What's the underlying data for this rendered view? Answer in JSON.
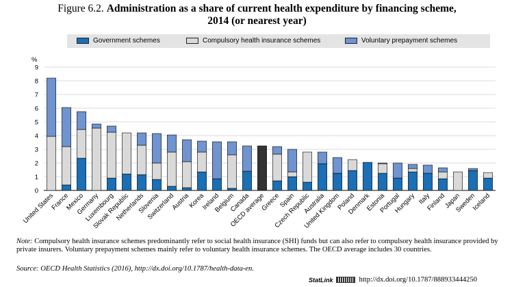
{
  "header": {
    "figure_label": "Figure 6.2.",
    "title_main": "Administration as a share of current health expenditure by financing scheme,",
    "title_sub": "2014 (or nearest year)"
  },
  "colors": {
    "government": "#1a6fb5",
    "compulsory": "#d9d9d9",
    "voluntary": "#6f94cf",
    "average": "#333333"
  },
  "chart_data": {
    "type": "bar",
    "stacked": true,
    "ylabel": "%",
    "ylim": [
      0,
      9
    ],
    "yticks": [
      0,
      1,
      2,
      3,
      4,
      5,
      6,
      7,
      8,
      9
    ],
    "grid": true,
    "legend_position": "top",
    "categories": [
      "United States",
      "France",
      "Mexico",
      "Germany",
      "Luxembourg",
      "Slovak Republic",
      "Netherlands",
      "Slovenia",
      "Switzerland",
      "Austria",
      "Korea",
      "Ireland",
      "Belgium",
      "Canada",
      "OECD average",
      "Greece",
      "Spain",
      "Czech Republic",
      "Australia",
      "United Kingdom",
      "Poland",
      "Denmark",
      "Estonia",
      "Portugal",
      "Hungary",
      "Italy",
      "Finland",
      "Japan",
      "Sweden",
      "Iceland"
    ],
    "series": [
      {
        "name": "Government schemes",
        "values": [
          0.0,
          0.4,
          2.35,
          0.0,
          0.9,
          1.2,
          1.15,
          0.8,
          0.3,
          0.2,
          1.35,
          0.85,
          0.15,
          1.4,
          null,
          0.7,
          1.0,
          0.6,
          1.95,
          1.25,
          1.45,
          2.05,
          1.25,
          0.9,
          1.35,
          1.25,
          0.85,
          0.0,
          1.45,
          0.9
        ]
      },
      {
        "name": "Compulsory health insurance schemes",
        "values": [
          3.95,
          2.8,
          2.1,
          4.55,
          3.35,
          3.0,
          2.15,
          1.2,
          2.5,
          1.9,
          1.45,
          0.0,
          2.45,
          0.0,
          null,
          1.95,
          0.35,
          2.2,
          0.0,
          0.0,
          0.8,
          0.0,
          0.7,
          0.0,
          0.25,
          0.0,
          0.5,
          1.35,
          0.0,
          0.4
        ]
      },
      {
        "name": "Voluntary prepayment schemes",
        "values": [
          4.25,
          2.85,
          1.3,
          0.3,
          0.45,
          0.0,
          0.9,
          2.15,
          1.25,
          1.6,
          0.8,
          2.7,
          0.95,
          1.85,
          null,
          0.55,
          1.65,
          0.0,
          0.85,
          1.15,
          0.0,
          0.0,
          0.05,
          1.1,
          0.3,
          0.6,
          0.3,
          0.0,
          0.15,
          0.0
        ]
      }
    ],
    "average": {
      "category": "OECD average",
      "value": 3.25
    }
  },
  "legend": {
    "government": "Government schemes",
    "compulsory": "Compulsory health insurance schemes",
    "voluntary": "Voluntary prepayment schemes"
  },
  "footer": {
    "note_label": "Note:",
    "note_text": " Compulsory health insurance schemes predominantly refer to social health insurance (SHI) funds but can also refer to compulsory health insurance provided by private insurers. Voluntary prepayment schemes mainly refer to voluntary health insurance schemes. The OECD average includes 30 countries.",
    "source_label": "Source:",
    "source_text": " OECD Health Statistics (2016), http://dx.doi.org/10.1787/health-data-en.",
    "statlink_brand": "StatLink",
    "statlink_url": "http://dx.doi.org/10.1787/888933444250"
  }
}
